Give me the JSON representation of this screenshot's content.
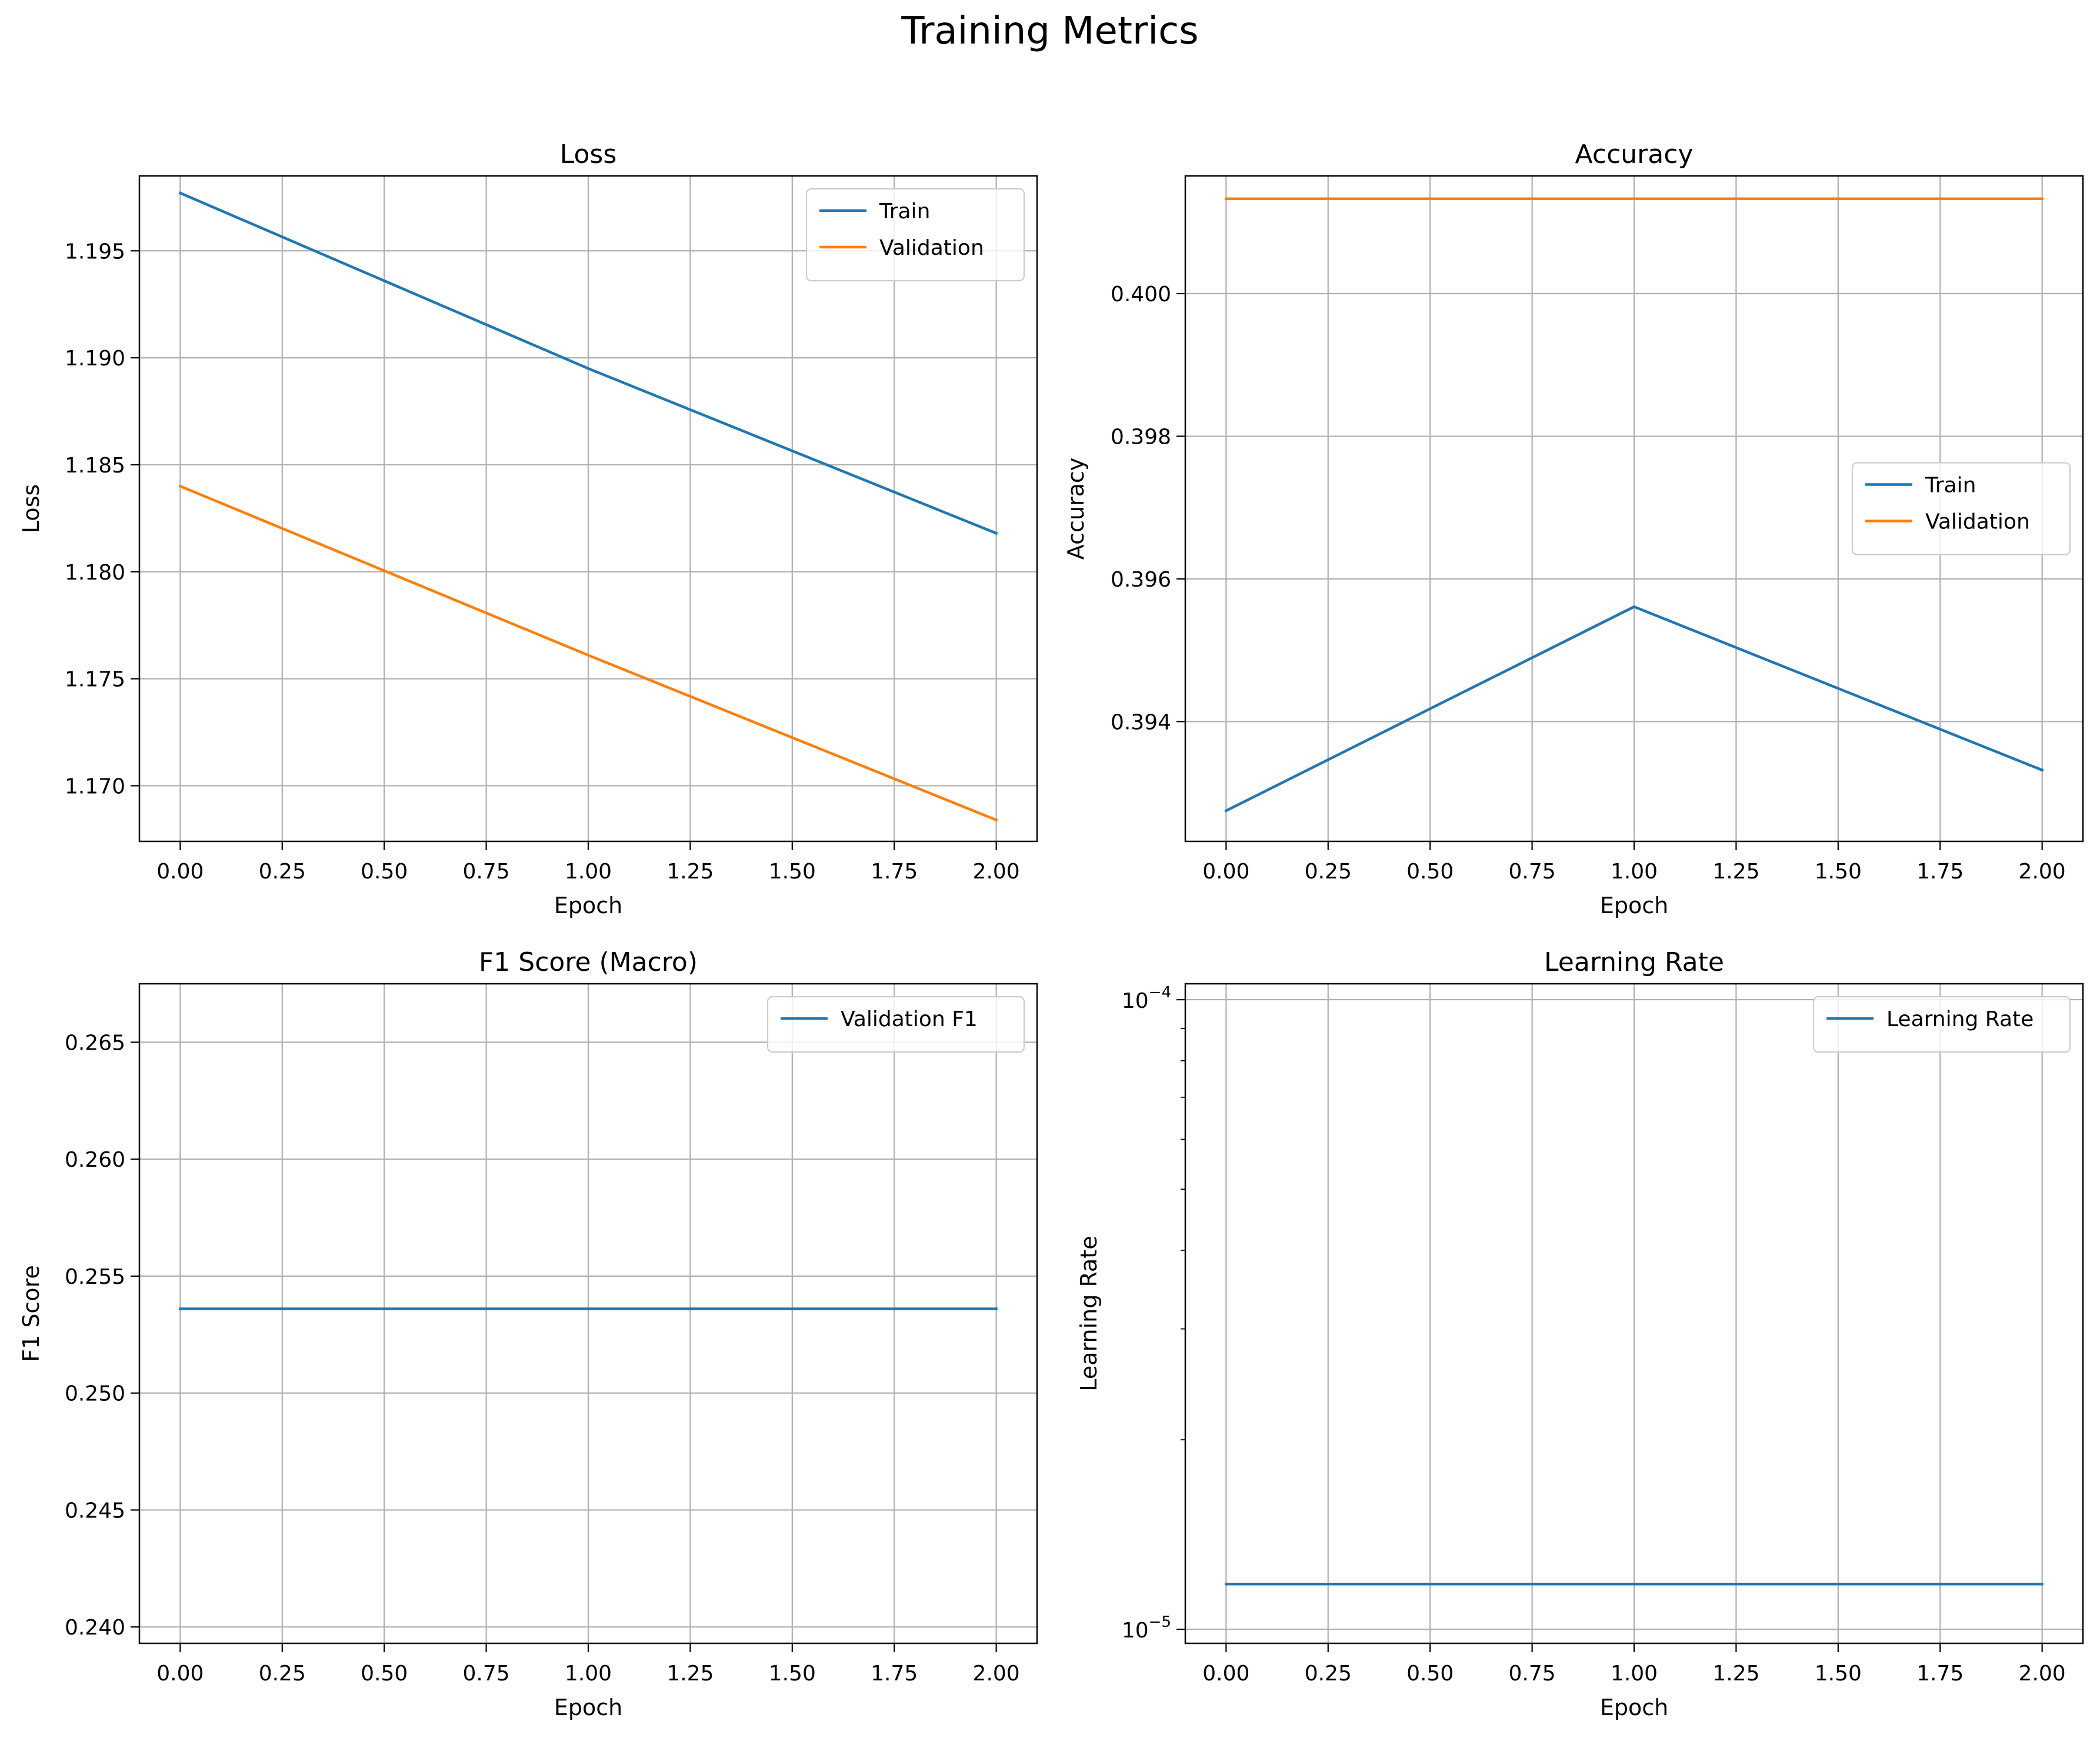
{
  "figure": {
    "title": "Training Metrics"
  },
  "colors": {
    "train": "#1f77b4",
    "validation": "#ff7f0e",
    "grid": "#b0b0b0",
    "axes": "#000000",
    "background": "#ffffff"
  },
  "chart_data": [
    {
      "id": "loss",
      "type": "line",
      "title": "Loss",
      "xlabel": "Epoch",
      "ylabel": "Loss",
      "xlim": [
        -0.1,
        2.1
      ],
      "ylim": [
        1.1674,
        1.1985
      ],
      "xticks": [
        0,
        0.25,
        0.5,
        0.75,
        1,
        1.25,
        1.5,
        1.75,
        2
      ],
      "xticklabels": [
        "0.00",
        "0.25",
        "0.50",
        "0.75",
        "1.00",
        "1.25",
        "1.50",
        "1.75",
        "2.00"
      ],
      "yticks": [
        1.17,
        1.175,
        1.18,
        1.185,
        1.19,
        1.195
      ],
      "yticklabels": [
        "1.170",
        "1.175",
        "1.180",
        "1.185",
        "1.190",
        "1.195"
      ],
      "yscale": "linear",
      "grid": true,
      "legend": "upper right",
      "series": [
        {
          "name": "Train",
          "color": "#1f77b4",
          "x": [
            0,
            1,
            2
          ],
          "y": [
            1.1977,
            1.1895,
            1.1818
          ]
        },
        {
          "name": "Validation",
          "color": "#ff7f0e",
          "x": [
            0,
            1,
            2
          ],
          "y": [
            1.184,
            1.1761,
            1.1684
          ]
        }
      ]
    },
    {
      "id": "accuracy",
      "type": "line",
      "title": "Accuracy",
      "xlabel": "Epoch",
      "ylabel": "Accuracy",
      "xlim": [
        -0.1,
        2.1
      ],
      "ylim": [
        0.39232,
        0.40165
      ],
      "xticks": [
        0,
        0.25,
        0.5,
        0.75,
        1,
        1.25,
        1.5,
        1.75,
        2
      ],
      "xticklabels": [
        "0.00",
        "0.25",
        "0.50",
        "0.75",
        "1.00",
        "1.25",
        "1.50",
        "1.75",
        "2.00"
      ],
      "yticks": [
        0.394,
        0.396,
        0.398,
        0.4
      ],
      "yticklabels": [
        "0.394",
        "0.396",
        "0.398",
        "0.400"
      ],
      "yscale": "linear",
      "grid": true,
      "legend": "center right",
      "series": [
        {
          "name": "Train",
          "color": "#1f77b4",
          "x": [
            0,
            1,
            2
          ],
          "y": [
            0.39275,
            0.39561,
            0.39332
          ]
        },
        {
          "name": "Validation",
          "color": "#ff7f0e",
          "x": [
            0,
            1,
            2
          ],
          "y": [
            0.40133,
            0.40133,
            0.40133
          ]
        }
      ]
    },
    {
      "id": "f1",
      "type": "line",
      "title": "F1 Score (Macro)",
      "xlabel": "Epoch",
      "ylabel": "F1 Score",
      "xlim": [
        -0.1,
        2.1
      ],
      "ylim": [
        0.2393,
        0.2675
      ],
      "xticks": [
        0,
        0.25,
        0.5,
        0.75,
        1,
        1.25,
        1.5,
        1.75,
        2
      ],
      "xticklabels": [
        "0.00",
        "0.25",
        "0.50",
        "0.75",
        "1.00",
        "1.25",
        "1.50",
        "1.75",
        "2.00"
      ],
      "yticks": [
        0.24,
        0.245,
        0.25,
        0.255,
        0.26,
        0.265
      ],
      "yticklabels": [
        "0.240",
        "0.245",
        "0.250",
        "0.255",
        "0.260",
        "0.265"
      ],
      "yscale": "linear",
      "grid": true,
      "legend": "upper right",
      "series": [
        {
          "name": "Validation F1",
          "color": "#1f77b4",
          "x": [
            0,
            1,
            2
          ],
          "y": [
            0.2536,
            0.2536,
            0.2536
          ]
        }
      ]
    },
    {
      "id": "lr",
      "type": "line",
      "title": "Learning Rate",
      "xlabel": "Epoch",
      "ylabel": "Learning Rate",
      "xlim": [
        -0.1,
        2.1
      ],
      "ylim": [
        9.5e-06,
        0.000106
      ],
      "xticks": [
        0,
        0.25,
        0.5,
        0.75,
        1,
        1.25,
        1.5,
        1.75,
        2
      ],
      "xticklabels": [
        "0.00",
        "0.25",
        "0.50",
        "0.75",
        "1.00",
        "1.25",
        "1.50",
        "1.75",
        "2.00"
      ],
      "yticks": [
        1e-05,
        0.0001
      ],
      "ytick_base": "10",
      "ytick_exponents": [
        "−5",
        "−4"
      ],
      "yminorticks": [
        2e-05,
        3e-05,
        4e-05,
        5e-05,
        6e-05,
        7e-05,
        8e-05,
        9e-05
      ],
      "yscale": "log",
      "grid": true,
      "legend": "upper right",
      "series": [
        {
          "name": "Learning Rate",
          "color": "#1f77b4",
          "x": [
            0,
            1,
            2
          ],
          "y": [
            1.18e-05,
            1.18e-05,
            1.18e-05
          ]
        }
      ]
    }
  ]
}
